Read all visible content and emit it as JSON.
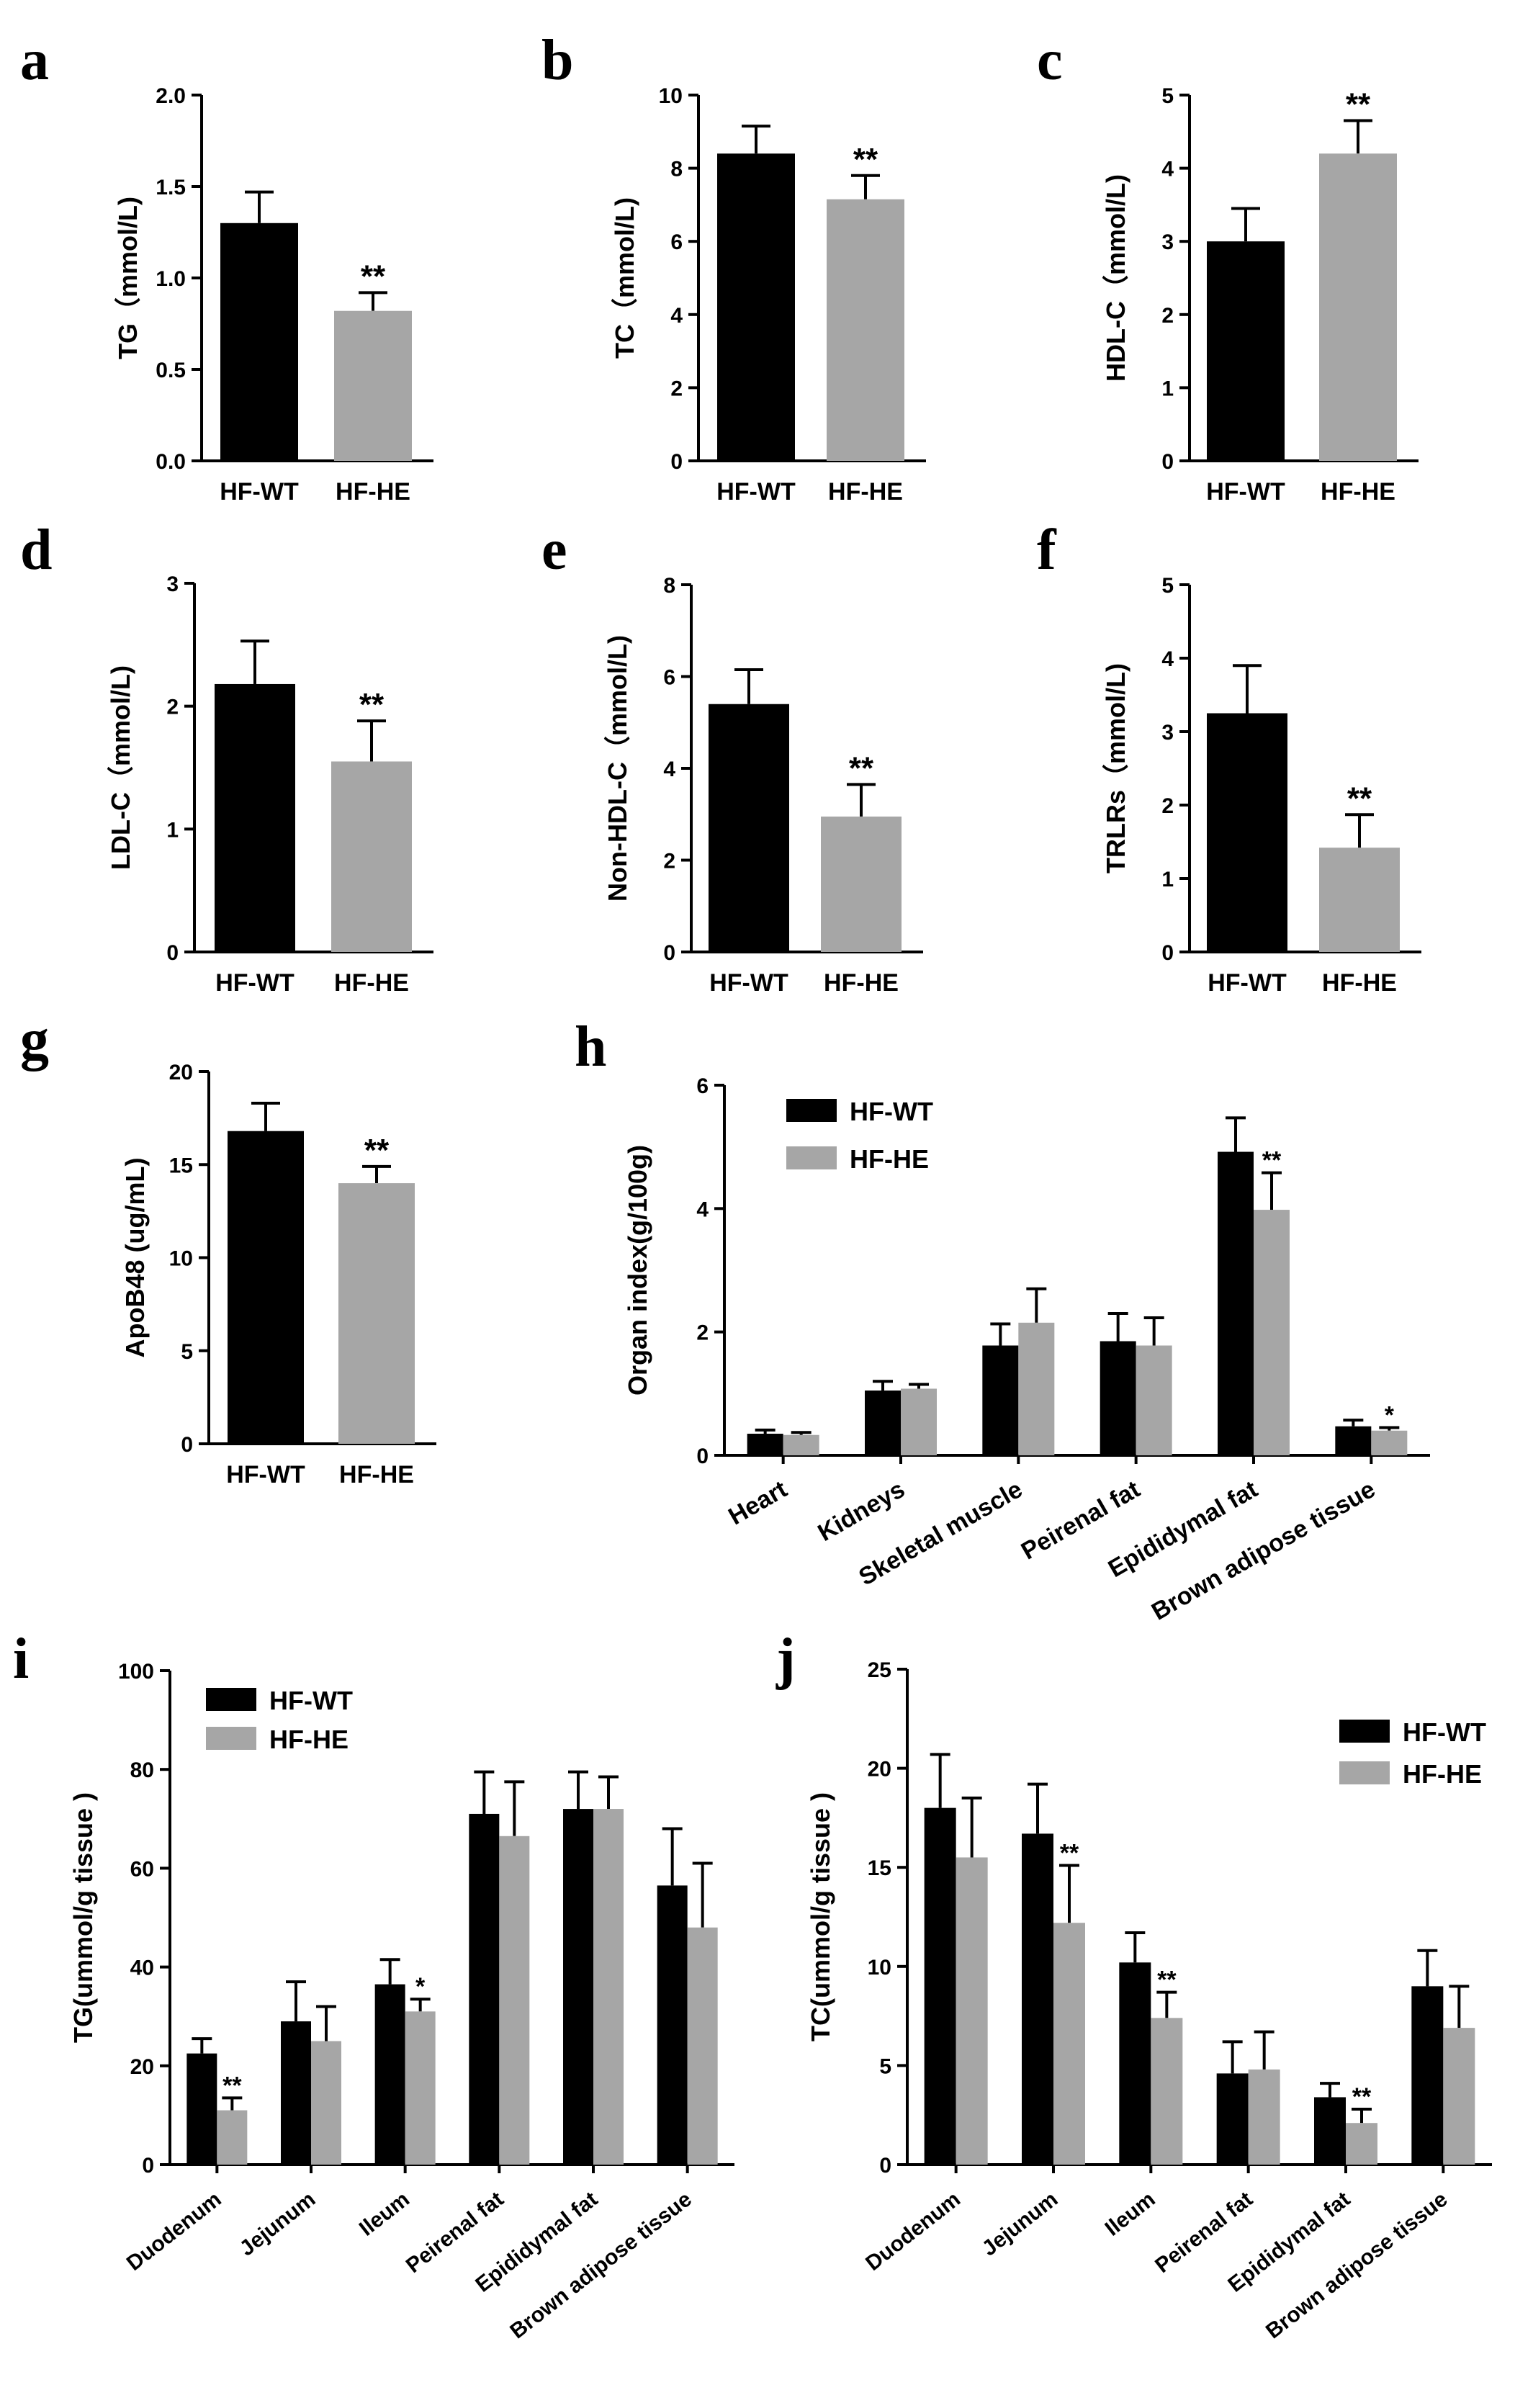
{
  "colors": {
    "wt": "#000000",
    "he": "#a6a6a6"
  },
  "chart_data": [
    {
      "id": "a",
      "panel": "a",
      "type": "bar",
      "ylabel": "TG（mmol/L)",
      "categories": [
        "HF-WT",
        "HF-HE"
      ],
      "values": [
        1.3,
        0.82
      ],
      "errors": [
        0.17,
        0.1
      ],
      "sig": [
        "",
        "**"
      ],
      "ylim": [
        0,
        2.0
      ],
      "yticks": [
        0,
        0.5,
        1.0,
        1.5,
        2.0
      ],
      "tick_labels": [
        "0.0",
        "0.5",
        "1.0",
        "1.5",
        "2.0"
      ]
    },
    {
      "id": "b",
      "panel": "b",
      "type": "bar",
      "ylabel": "TC（mmol/L)",
      "categories": [
        "HF-WT",
        "HF-HE"
      ],
      "values": [
        8.4,
        7.15
      ],
      "errors": [
        0.75,
        0.65
      ],
      "sig": [
        "",
        "**"
      ],
      "ylim": [
        0,
        10
      ],
      "yticks": [
        0,
        2,
        4,
        6,
        8,
        10
      ],
      "tick_labels": [
        "0",
        "2",
        "4",
        "6",
        "8",
        "10"
      ]
    },
    {
      "id": "c",
      "panel": "c",
      "type": "bar",
      "ylabel": "HDL-C（mmol/L)",
      "categories": [
        "HF-WT",
        "HF-HE"
      ],
      "values": [
        3.0,
        4.2
      ],
      "errors": [
        0.45,
        0.45
      ],
      "sig": [
        "",
        "**"
      ],
      "ylim": [
        0,
        5
      ],
      "yticks": [
        0,
        1,
        2,
        3,
        4,
        5
      ],
      "tick_labels": [
        "0",
        "1",
        "2",
        "3",
        "4",
        "5"
      ]
    },
    {
      "id": "d",
      "panel": "d",
      "type": "bar",
      "ylabel": "LDL-C（mmol/L)",
      "categories": [
        "HF-WT",
        "HF-HE"
      ],
      "values": [
        2.18,
        1.55
      ],
      "errors": [
        0.35,
        0.33
      ],
      "sig": [
        "",
        "**"
      ],
      "ylim": [
        0,
        3
      ],
      "yticks": [
        0,
        1,
        2,
        3
      ],
      "tick_labels": [
        "0",
        "1",
        "2",
        "3"
      ]
    },
    {
      "id": "e",
      "panel": "e",
      "type": "bar",
      "ylabel": "Non-HDL-C（mmol/L)",
      "categories": [
        "HF-WT",
        "HF-HE"
      ],
      "values": [
        5.4,
        2.95
      ],
      "errors": [
        0.75,
        0.7
      ],
      "sig": [
        "",
        "**"
      ],
      "ylim": [
        0,
        8
      ],
      "yticks": [
        0,
        2,
        4,
        6,
        8
      ],
      "tick_labels": [
        "0",
        "2",
        "4",
        "6",
        "8"
      ]
    },
    {
      "id": "f",
      "panel": "f",
      "type": "bar",
      "ylabel": "TRLRs（mmol/L)",
      "categories": [
        "HF-WT",
        "HF-HE"
      ],
      "values": [
        3.25,
        1.42
      ],
      "errors": [
        0.65,
        0.45
      ],
      "sig": [
        "",
        "**"
      ],
      "ylim": [
        0,
        5
      ],
      "yticks": [
        0,
        1,
        2,
        3,
        4,
        5
      ],
      "tick_labels": [
        "0",
        "1",
        "2",
        "3",
        "4",
        "5"
      ]
    },
    {
      "id": "g",
      "panel": "g",
      "type": "bar",
      "ylabel": "ApoB48 (ug/mL)",
      "categories": [
        "HF-WT",
        "HF-HE"
      ],
      "values": [
        16.8,
        14.0
      ],
      "errors": [
        1.5,
        0.9
      ],
      "sig": [
        "",
        "**"
      ],
      "ylim": [
        0,
        20
      ],
      "yticks": [
        0,
        5,
        10,
        15,
        20
      ],
      "tick_labels": [
        "0",
        "5",
        "10",
        "15",
        "20"
      ]
    },
    {
      "id": "h",
      "panel": "h",
      "type": "bar",
      "ylabel": "Organ index(g/100g)",
      "legend": [
        "HF-WT",
        "HF-HE"
      ],
      "categories": [
        "Heart",
        "Kidneys",
        "Skeletal muscle",
        "Peirenal fat",
        "Epididymal fat",
        "Brown adipose tissue"
      ],
      "series": [
        {
          "name": "HF-WT",
          "values": [
            0.35,
            1.05,
            1.78,
            1.85,
            4.92,
            0.47
          ],
          "errors": [
            0.06,
            0.15,
            0.35,
            0.45,
            0.55,
            0.1
          ]
        },
        {
          "name": "HF-HE",
          "values": [
            0.33,
            1.08,
            2.15,
            1.78,
            3.98,
            0.4
          ],
          "errors": [
            0.04,
            0.07,
            0.55,
            0.45,
            0.6,
            0.05
          ]
        }
      ],
      "sig": [
        [
          "",
          ""
        ],
        [
          "",
          ""
        ],
        [
          "",
          ""
        ],
        [
          "",
          ""
        ],
        [
          "",
          "**"
        ],
        [
          "",
          "*"
        ]
      ],
      "ylim": [
        0,
        6
      ],
      "yticks": [
        0,
        2,
        4,
        6
      ],
      "tick_labels": [
        "0",
        "2",
        "4",
        "6"
      ]
    },
    {
      "id": "i",
      "panel": "i",
      "type": "bar",
      "ylabel": "TG(ummol/g tissue )",
      "legend": [
        "HF-WT",
        "HF-HE"
      ],
      "categories": [
        "Duodenum",
        "Jejunum",
        "Ileum",
        "Peirenal fat",
        "Epididymal fat",
        "Brown adipose tissue"
      ],
      "series": [
        {
          "name": "HF-WT",
          "values": [
            22.5,
            29,
            36.5,
            71,
            72,
            56.5
          ],
          "errors": [
            3.0,
            8.0,
            5.0,
            8.5,
            7.5,
            11.5
          ]
        },
        {
          "name": "HF-HE",
          "values": [
            11,
            25,
            31,
            66.5,
            72,
            48
          ],
          "errors": [
            2.5,
            7.0,
            2.5,
            11.0,
            6.5,
            13.0
          ]
        }
      ],
      "sig": [
        [
          "",
          "**"
        ],
        [
          "",
          ""
        ],
        [
          "",
          "*"
        ],
        [
          "",
          ""
        ],
        [
          "",
          ""
        ],
        [
          "",
          ""
        ]
      ],
      "ylim": [
        0,
        100
      ],
      "yticks": [
        0,
        20,
        40,
        60,
        80,
        100
      ],
      "tick_labels": [
        "0",
        "20",
        "40",
        "60",
        "80",
        "100"
      ]
    },
    {
      "id": "j",
      "panel": "j",
      "type": "bar",
      "ylabel": "TC(ummol/g tissue )",
      "legend": [
        "HF-WT",
        "HF-HE"
      ],
      "categories": [
        "Duodenum",
        "Jejunum",
        "Ileum",
        "Peirenal fat",
        "Epididymal fat",
        "Brown adipose tissue"
      ],
      "series": [
        {
          "name": "HF-WT",
          "values": [
            18,
            16.7,
            10.2,
            4.6,
            3.4,
            9.0
          ],
          "errors": [
            2.7,
            2.5,
            1.5,
            1.6,
            0.7,
            1.8
          ]
        },
        {
          "name": "HF-HE",
          "values": [
            15.5,
            12.2,
            7.4,
            4.8,
            2.1,
            6.9
          ],
          "errors": [
            3.0,
            2.9,
            1.3,
            1.9,
            0.7,
            2.1
          ]
        }
      ],
      "sig": [
        [
          "",
          ""
        ],
        [
          "",
          "**"
        ],
        [
          "",
          "**"
        ],
        [
          "",
          ""
        ],
        [
          "",
          "**"
        ],
        [
          "",
          ""
        ]
      ],
      "ylim": [
        0,
        25
      ],
      "yticks": [
        0,
        5,
        10,
        15,
        20,
        25
      ],
      "tick_labels": [
        "0",
        "5",
        "10",
        "15",
        "20",
        "25"
      ]
    }
  ]
}
